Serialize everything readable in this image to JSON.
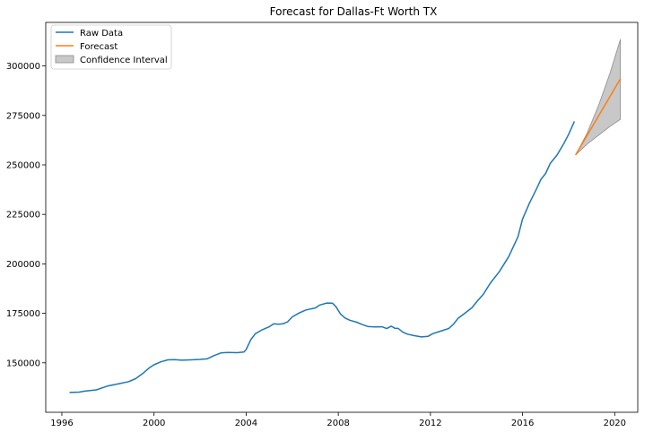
{
  "chart_data": {
    "type": "line",
    "title": "Forecast for Dallas-Ft Worth TX",
    "xlabel": "",
    "ylabel": "",
    "xlim": [
      1995.3,
      2021.0
    ],
    "ylim": [
      125000,
      322000
    ],
    "x_ticks": [
      1996,
      2000,
      2004,
      2008,
      2012,
      2016,
      2020
    ],
    "y_ticks": [
      150000,
      175000,
      200000,
      225000,
      250000,
      275000,
      300000
    ],
    "grid": false,
    "legend": {
      "position": "top-left",
      "entries": [
        "Raw Data",
        "Forecast",
        "Confidence Interval"
      ]
    },
    "colors": {
      "raw": "#1f77b4",
      "forecast": "#ff7f0e",
      "ci_fill": "#c8c8c8",
      "ci_edge": "#8c8c8c"
    },
    "series": [
      {
        "name": "Raw Data",
        "x": [
          1996.33,
          1996.75,
          1997.0,
          1997.5,
          1998.0,
          1998.5,
          1998.9,
          1999.2,
          1999.5,
          1999.8,
          2000.0,
          2000.3,
          2000.6,
          2000.9,
          2001.2,
          2001.6,
          2002.0,
          2002.3,
          2002.6,
          2002.9,
          2003.2,
          2003.6,
          2003.9,
          2004.0,
          2004.2,
          2004.4,
          2004.7,
          2005.0,
          2005.2,
          2005.4,
          2005.6,
          2005.8,
          2006.0,
          2006.3,
          2006.6,
          2007.0,
          2007.2,
          2007.5,
          2007.75,
          2007.9,
          2008.1,
          2008.3,
          2008.5,
          2008.8,
          2009.0,
          2009.3,
          2009.6,
          2009.9,
          2010.1,
          2010.3,
          2010.45,
          2010.6,
          2010.8,
          2011.0,
          2011.3,
          2011.6,
          2011.9,
          2012.1,
          2012.3,
          2012.5,
          2012.8,
          2013.0,
          2013.2,
          2013.5,
          2013.8,
          2014.0,
          2014.3,
          2014.6,
          2015.0,
          2015.4,
          2015.8,
          2016.0,
          2016.3,
          2016.6,
          2016.8,
          2017.0,
          2017.2,
          2017.5,
          2017.8,
          2018.0,
          2018.25
        ],
        "values": [
          135000,
          135200,
          135700,
          136300,
          138300,
          139500,
          140500,
          142000,
          144500,
          147500,
          149000,
          150500,
          151500,
          151600,
          151300,
          151500,
          151700,
          152000,
          153600,
          155000,
          155200,
          155100,
          155500,
          156700,
          161700,
          164700,
          166700,
          168200,
          169700,
          169500,
          169700,
          170700,
          173200,
          175200,
          176700,
          177700,
          179200,
          180200,
          180100,
          178300,
          174600,
          172600,
          171500,
          170500,
          169500,
          168300,
          168100,
          168200,
          167300,
          168500,
          167500,
          167400,
          165500,
          164500,
          163700,
          163100,
          163400,
          164700,
          165500,
          166200,
          167400,
          169500,
          172500,
          175100,
          177800,
          180700,
          184700,
          190200,
          196200,
          203700,
          213700,
          222700,
          230700,
          237700,
          242700,
          245700,
          250700,
          255000,
          261000,
          265500,
          272000
        ]
      }
    ],
    "forecast": {
      "name": "Forecast",
      "x": [
        2018.3,
        2020.25
      ],
      "values": [
        255000,
        293500
      ]
    },
    "confidence_interval": {
      "name": "Confidence Interval",
      "x": [
        2018.3,
        2018.8,
        2019.3,
        2019.8,
        2020.25
      ],
      "upper": [
        255000,
        266000,
        280000,
        296500,
        313500
      ],
      "lower": [
        255000,
        260500,
        265000,
        269500,
        273000
      ]
    }
  }
}
